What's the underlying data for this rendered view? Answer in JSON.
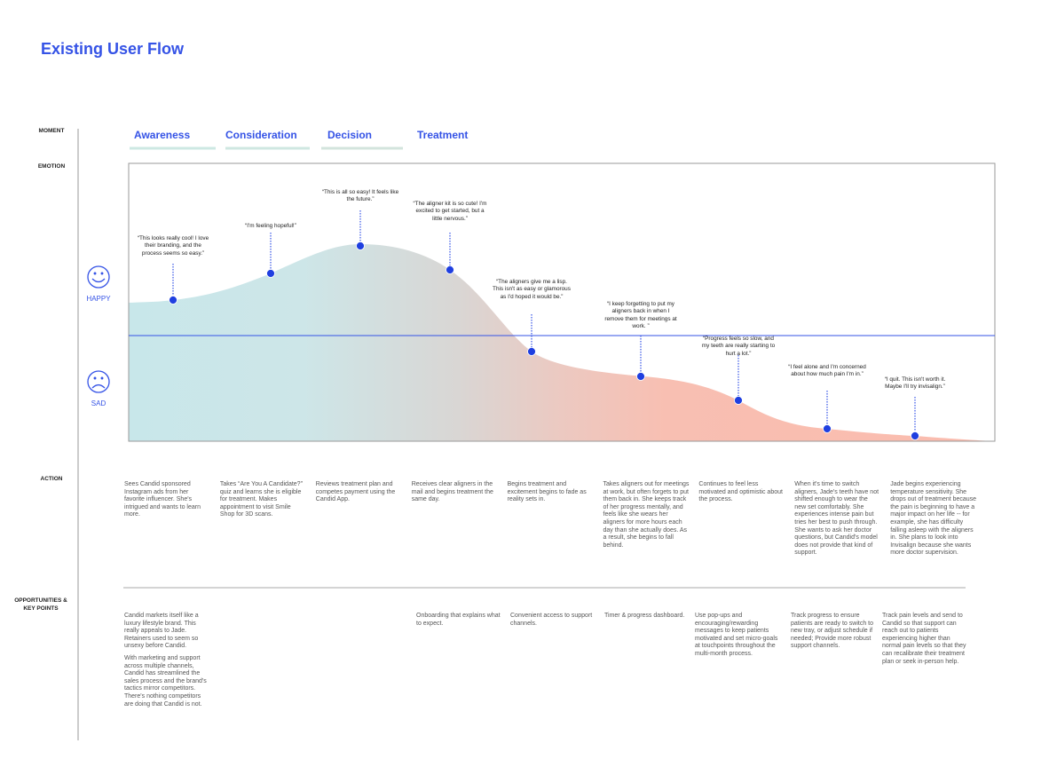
{
  "title": "Existing User Flow",
  "row_labels": {
    "moment": "MOMENT",
    "emotion": "EMOTION",
    "action": "ACTION",
    "opportunities": "OPPORTUNITIES & KEY POINTS"
  },
  "stages": [
    "Awareness",
    "Consideration",
    "Decision",
    "Treatment"
  ],
  "emotion_labels": {
    "happy": "HAPPY",
    "sad": "SAD"
  },
  "quotes": [
    "“This looks really cool! I love their branding, and the process seems so easy.”",
    "“I'm feeling hopeful!”",
    "“This is all so easy! It feels like the future.”",
    "“The aligner kit is so cute! I'm excited to get started, but a little nervous.”",
    "“The aligners give me a lisp. This isn't as easy or glamorous as I'd hoped it would be.”",
    "“I keep forgetting to put my aligners back in when I remove them for meetings at work. ”",
    "“Progress feels so slow, and my teeth are really starting to hurt a lot.”",
    "“I feel alone and I'm concerned about how much pain I'm in.”",
    "“I quit. This isn't worth it. Maybe I'll try invisalign.”"
  ],
  "actions": [
    "Sees Candid sponsored Instagram ads from her favorite influencer. She's intrigued and wants to learn more.",
    "Takes “Are You A Candidate?” quiz and learns she is eligible for treatment. Makes appointment to visit Smile Shop for 3D scans.",
    "Reviews treatment plan and competes payment using the Candid App.",
    "Receives clear aligners in the mail and begins treatment the same day.",
    "Begins treatment and excitement begins to fade as reality sets in.",
    "Takes aligners out for meetings at work, but often forgets to put them back in. She keeps track of her progress mentally, and feels like she wears her aligners for more hours each day than she actually does. As a result, she begins to fall behind.",
    "Continues to feel less motivated and optimistic about the process.",
    "When it's time to switch aligners, Jade's teeth have not shifted enough to wear the new set comfortably. She experiences intense pain but tries her best to push through. She wants to ask her doctor questions, but Candid's model does not provide that kind of support.",
    "Jade begins experiencing temperature sensitivity. She drops out of treatment because the pain is beginning to have a major impact on her life -- for example, she has difficulty falling asleep with the aligners in. She plans to look into Invisalign because she wants more doctor supervision."
  ],
  "opportunities": [
    [
      "Candid markets itself like a luxury lifestyle brand. This really appeals to Jade. Retainers used to seem so unsexy before Candid.",
      "With marketing and support across multiple channels, Candid has streamlined the sales process and the brand's tactics mirror competitors. There's nothing competitors are doing that Candid is not."
    ],
    [
      "Onboarding that explains what to expect."
    ],
    [
      "Convenient access to support channels."
    ],
    [
      "Timer & progress dashboard."
    ],
    [
      "Use pop-ups and encouraging/rewarding messages to keep patients motivated and set micro-goals at touchpoints throughout the multi-month process."
    ],
    [
      "Track progress to ensure patients are ready to switch to new tray, or adjust schedule if needed; Provide more robust support channels."
    ],
    [
      "Track pain levels and send to Candid so that support can reach out to patients experiencing higher than normal pain levels so that they can recalibrate their treatment plan or seek in-person help."
    ]
  ]
}
